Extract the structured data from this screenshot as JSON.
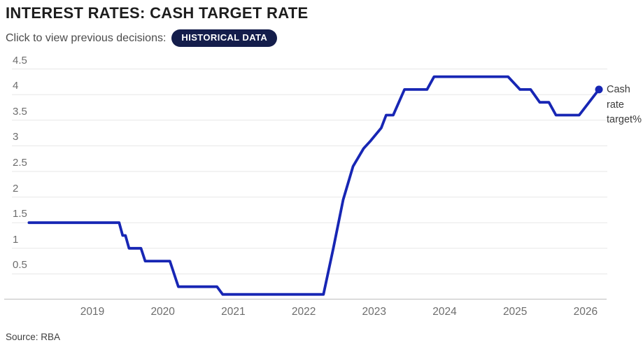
{
  "header": {
    "title": "INTEREST RATES: CASH TARGET RATE",
    "subtitle_prefix": "Click to view previous decisions:",
    "button_label": "HISTORICAL DATA"
  },
  "chart_data": {
    "type": "line",
    "title": "Interest rates: cash target rate",
    "series": [
      {
        "name": "Cash rate target%",
        "points": [
          [
            2018.1,
            1.5
          ],
          [
            2019.38,
            1.5
          ],
          [
            2019.43,
            1.25
          ],
          [
            2019.47,
            1.25
          ],
          [
            2019.52,
            1.0
          ],
          [
            2019.69,
            1.0
          ],
          [
            2019.75,
            0.75
          ],
          [
            2020.1,
            0.75
          ],
          [
            2020.22,
            0.25
          ],
          [
            2020.77,
            0.25
          ],
          [
            2020.85,
            0.1
          ],
          [
            2022.28,
            0.1
          ],
          [
            2022.42,
            1.0
          ],
          [
            2022.56,
            1.95
          ],
          [
            2022.7,
            2.6
          ],
          [
            2022.85,
            2.95
          ],
          [
            2022.95,
            3.1
          ],
          [
            2023.1,
            3.35
          ],
          [
            2023.17,
            3.6
          ],
          [
            2023.27,
            3.6
          ],
          [
            2023.35,
            3.85
          ],
          [
            2023.43,
            4.1
          ],
          [
            2023.75,
            4.1
          ],
          [
            2023.85,
            4.35
          ],
          [
            2024.9,
            4.35
          ],
          [
            2025.07,
            4.1
          ],
          [
            2025.22,
            4.1
          ],
          [
            2025.35,
            3.85
          ],
          [
            2025.48,
            3.85
          ],
          [
            2025.58,
            3.6
          ],
          [
            2025.91,
            3.6
          ],
          [
            2026.19,
            4.1
          ]
        ]
      }
    ],
    "end_point": {
      "x": 2026.19,
      "y": 4.1
    },
    "end_label": "Cash rate target%",
    "x_ticks": [
      2019,
      2020,
      2021,
      2022,
      2023,
      2024,
      2025,
      2026
    ],
    "y_ticks": [
      4.5,
      4,
      3.5,
      3,
      2.5,
      2,
      1.5,
      1,
      0.5
    ],
    "xlim": [
      2018.0,
      2026.45
    ],
    "ylim": [
      0,
      4.6
    ],
    "grid": true,
    "legend_position": "end-of-line",
    "line_color": "#1726b4",
    "grid_color": "#e7e7e7",
    "axis_color": "#c8c8c8"
  },
  "footer": {
    "source": "Source: RBA"
  },
  "colors": {
    "accent_blue": "#1726b4",
    "badge_navy": "#141d4b",
    "title_text": "#1d1d1d",
    "subtitle_text": "#4c4c4c",
    "tick_text": "#6d6d6d"
  }
}
